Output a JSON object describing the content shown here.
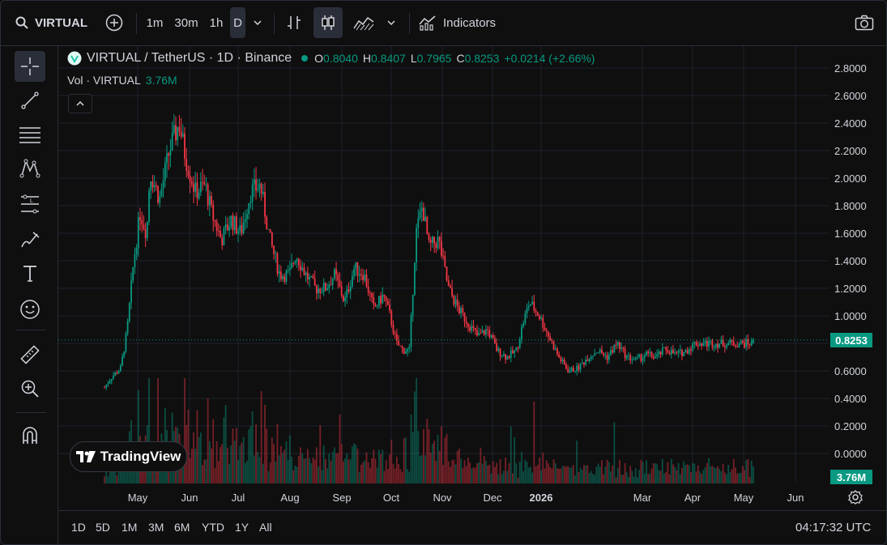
{
  "toolbar": {
    "symbol": "VIRTUAL",
    "intervals": [
      "1m",
      "30m",
      "1h",
      "D"
    ],
    "active_interval": "D",
    "indicators_label": "Indicators"
  },
  "legend": {
    "title": "VIRTUAL / TetherUS · 1D · Binance",
    "open_label": "O",
    "open": "0.8040",
    "high_label": "H",
    "high": "0.8407",
    "low_label": "L",
    "low": "0.7965",
    "close_label": "C",
    "close": "0.8253",
    "change": "+0.0214 (+2.66%)",
    "vol_label": "Vol · VIRTUAL",
    "vol_value": "3.76M"
  },
  "price_axis": {
    "ticks": [
      "2.8000",
      "2.6000",
      "2.4000",
      "2.2000",
      "2.0000",
      "1.8000",
      "1.6000",
      "1.4000",
      "1.2000",
      "1.0000",
      "0.6000",
      "0.4000",
      "0.2000",
      "0.0000"
    ],
    "current_price": "0.8253",
    "current_volume": "3.76M"
  },
  "time_axis": {
    "ticks": [
      "May",
      "Jun",
      "Jul",
      "Aug",
      "Sep",
      "Oct",
      "Nov",
      "Dec",
      "2026",
      "Mar",
      "Apr",
      "May",
      "Jun"
    ]
  },
  "ranges": [
    "1D",
    "5D",
    "1M",
    "3M",
    "6M",
    "YTD",
    "1Y",
    "All"
  ],
  "clock": "04:17:32 UTC",
  "logo_text": "TradingView",
  "colors": {
    "up": "#089981",
    "down": "#f23645",
    "bg": "#0f0f0f",
    "grid": "#1e222d"
  },
  "chart_data": {
    "type": "candlestick",
    "price_range": [
      0.0,
      2.85
    ],
    "price_path": [
      [
        0.0,
        0.48
      ],
      [
        0.01,
        0.55
      ],
      [
        0.025,
        0.62
      ],
      [
        0.035,
        0.9
      ],
      [
        0.045,
        1.4
      ],
      [
        0.055,
        1.75
      ],
      [
        0.065,
        1.6
      ],
      [
        0.07,
        2.05
      ],
      [
        0.085,
        1.85
      ],
      [
        0.1,
        2.2
      ],
      [
        0.115,
        2.4
      ],
      [
        0.125,
        2.15
      ],
      [
        0.14,
        1.9
      ],
      [
        0.155,
        1.95
      ],
      [
        0.165,
        1.75
      ],
      [
        0.18,
        1.55
      ],
      [
        0.195,
        1.7
      ],
      [
        0.21,
        1.6
      ],
      [
        0.225,
        1.9
      ],
      [
        0.24,
        1.95
      ],
      [
        0.255,
        1.55
      ],
      [
        0.27,
        1.3
      ],
      [
        0.285,
        1.3
      ],
      [
        0.295,
        1.45
      ],
      [
        0.31,
        1.3
      ],
      [
        0.325,
        1.2
      ],
      [
        0.34,
        1.2
      ],
      [
        0.355,
        1.3
      ],
      [
        0.37,
        1.1
      ],
      [
        0.385,
        1.35
      ],
      [
        0.4,
        1.3
      ],
      [
        0.415,
        1.05
      ],
      [
        0.43,
        1.15
      ],
      [
        0.44,
        1.0
      ],
      [
        0.45,
        0.8
      ],
      [
        0.46,
        0.75
      ],
      [
        0.47,
        0.75
      ],
      [
        0.48,
        1.6
      ],
      [
        0.49,
        1.8
      ],
      [
        0.5,
        1.5
      ],
      [
        0.515,
        1.55
      ],
      [
        0.53,
        1.2
      ],
      [
        0.545,
        1.05
      ],
      [
        0.56,
        0.95
      ],
      [
        0.575,
        0.85
      ],
      [
        0.59,
        0.9
      ],
      [
        0.605,
        0.75
      ],
      [
        0.62,
        0.7
      ],
      [
        0.635,
        0.75
      ],
      [
        0.645,
        0.95
      ],
      [
        0.655,
        1.1
      ],
      [
        0.67,
        1.0
      ],
      [
        0.685,
        0.85
      ],
      [
        0.7,
        0.7
      ],
      [
        0.715,
        0.6
      ],
      [
        0.73,
        0.62
      ],
      [
        0.745,
        0.7
      ],
      [
        0.76,
        0.75
      ],
      [
        0.775,
        0.7
      ],
      [
        0.79,
        0.8
      ],
      [
        0.805,
        0.7
      ],
      [
        0.82,
        0.68
      ],
      [
        0.835,
        0.72
      ],
      [
        0.85,
        0.7
      ],
      [
        0.865,
        0.76
      ],
      [
        0.88,
        0.72
      ],
      [
        0.895,
        0.74
      ],
      [
        0.91,
        0.8
      ]
    ],
    "last": {
      "open": 0.804,
      "high": 0.8407,
      "low": 0.7965,
      "close": 0.8253
    }
  }
}
